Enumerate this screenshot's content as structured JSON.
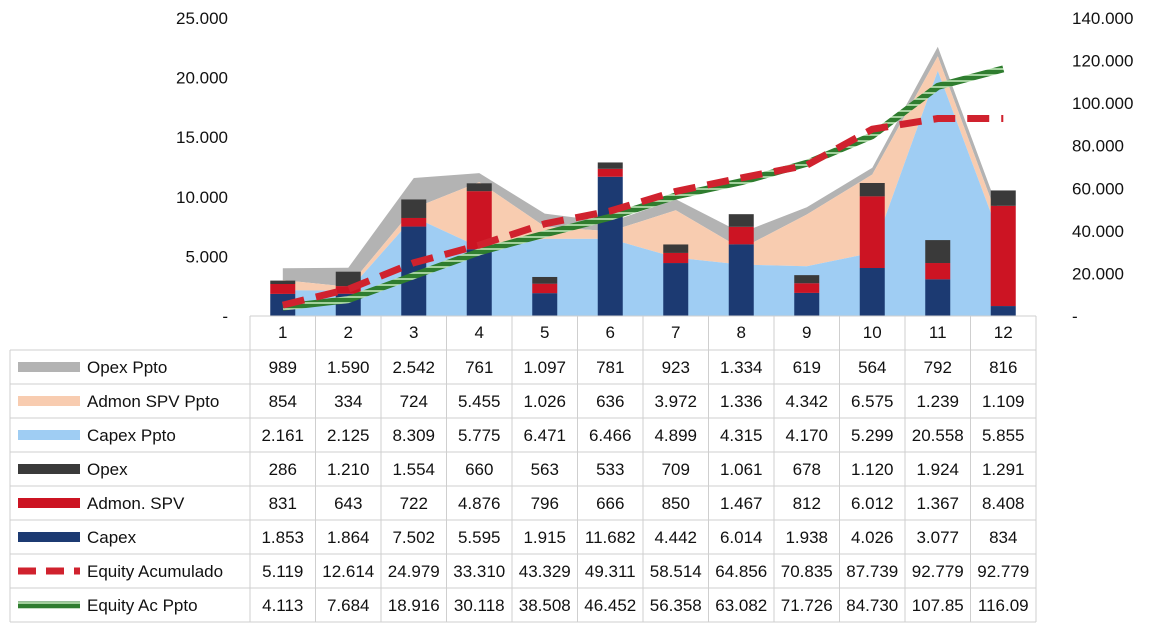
{
  "chart_data": {
    "type": "bar",
    "categories": [
      "1",
      "2",
      "3",
      "4",
      "5",
      "6",
      "7",
      "8",
      "9",
      "10",
      "11",
      "12"
    ],
    "y_left": {
      "ylim": [
        0,
        25000
      ],
      "ticks": [
        "25.000",
        "20.000",
        "15.000",
        "10.000",
        "5.000",
        "-"
      ]
    },
    "y_right": {
      "ylim": [
        0,
        140000
      ],
      "ticks": [
        "140.000",
        "120.000",
        "100.000",
        "80.000",
        "60.000",
        "40.000",
        "20.000",
        "-"
      ]
    },
    "grid": false,
    "legend": "table-below",
    "series": [
      {
        "name": "Opex Ppto",
        "kind": "stacked-area",
        "axis": "left",
        "color": "#b3b3b3",
        "values": [
          989,
          1590,
          2542,
          761,
          1097,
          781,
          923,
          1334,
          619,
          564,
          792,
          816
        ],
        "labels": [
          "989",
          "1.590",
          "2.542",
          "761",
          "1.097",
          "781",
          "923",
          "1.334",
          "619",
          "564",
          "792",
          "816"
        ]
      },
      {
        "name": "Admon SPV Ppto",
        "kind": "stacked-area",
        "axis": "left",
        "color": "#f8ccb0",
        "values": [
          854,
          334,
          724,
          5455,
          1026,
          636,
          3972,
          1336,
          4342,
          6575,
          1239,
          1109
        ],
        "labels": [
          "854",
          "334",
          "724",
          "5.455",
          "1.026",
          "636",
          "3.972",
          "1.336",
          "4.342",
          "6.575",
          "1.239",
          "1.109"
        ]
      },
      {
        "name": "Capex Ppto",
        "kind": "stacked-area",
        "axis": "left",
        "color": "#9fcdf3",
        "values": [
          2161,
          2125,
          8309,
          5775,
          6471,
          6466,
          4899,
          4315,
          4170,
          5299,
          20558,
          5855
        ],
        "labels": [
          "2.161",
          "2.125",
          "8.309",
          "5.775",
          "6.471",
          "6.466",
          "4.899",
          "4.315",
          "4.170",
          "5.299",
          "20.558",
          "5.855"
        ]
      },
      {
        "name": "Opex",
        "kind": "stacked-bar",
        "axis": "left",
        "color": "#3a3a3a",
        "values": [
          286,
          1210,
          1554,
          660,
          563,
          533,
          709,
          1061,
          678,
          1120,
          1924,
          1291
        ],
        "labels": [
          "286",
          "1.210",
          "1.554",
          "660",
          "563",
          "533",
          "709",
          "1.061",
          "678",
          "1.120",
          "1.924",
          "1.291"
        ]
      },
      {
        "name": "Admon. SPV",
        "kind": "stacked-bar",
        "axis": "left",
        "color": "#cc1423",
        "values": [
          831,
          643,
          722,
          4876,
          796,
          666,
          850,
          1467,
          812,
          6012,
          1367,
          8408
        ],
        "labels": [
          "831",
          "643",
          "722",
          "4.876",
          "796",
          "666",
          "850",
          "1.467",
          "812",
          "6.012",
          "1.367",
          "8.408"
        ]
      },
      {
        "name": "Capex",
        "kind": "stacked-bar",
        "axis": "left",
        "color": "#1c3a72",
        "values": [
          1853,
          1864,
          7502,
          5595,
          1915,
          11682,
          4442,
          6014,
          1938,
          4026,
          3077,
          834
        ],
        "labels": [
          "1.853",
          "1.864",
          "7.502",
          "5.595",
          "1.915",
          "11.682",
          "4.442",
          "6.014",
          "1.938",
          "4.026",
          "3.077",
          "834"
        ]
      },
      {
        "name": "Equity Acumulado",
        "kind": "line-dashed",
        "axis": "right",
        "color": "#d0222e",
        "values": [
          5119,
          12614,
          24979,
          33310,
          43329,
          49311,
          58514,
          64856,
          70835,
          87739,
          92779,
          92779
        ],
        "labels": [
          "5.119",
          "12.614",
          "24.979",
          "33.310",
          "43.329",
          "49.311",
          "58.514",
          "64.856",
          "70.835",
          "87.739",
          "92.779",
          "92.779"
        ]
      },
      {
        "name": "Equity Ac Ppto",
        "kind": "line-striped",
        "axis": "right",
        "color": "#3f8f3f",
        "values": [
          4113,
          7684,
          18916,
          30118,
          38508,
          46452,
          56358,
          63082,
          71726,
          84730,
          107850,
          116090
        ],
        "labels": [
          "4.113",
          "7.684",
          "18.916",
          "30.118",
          "38.508",
          "46.452",
          "56.358",
          "63.082",
          "71.726",
          "84.730",
          "107.85",
          "116.09"
        ]
      }
    ]
  }
}
